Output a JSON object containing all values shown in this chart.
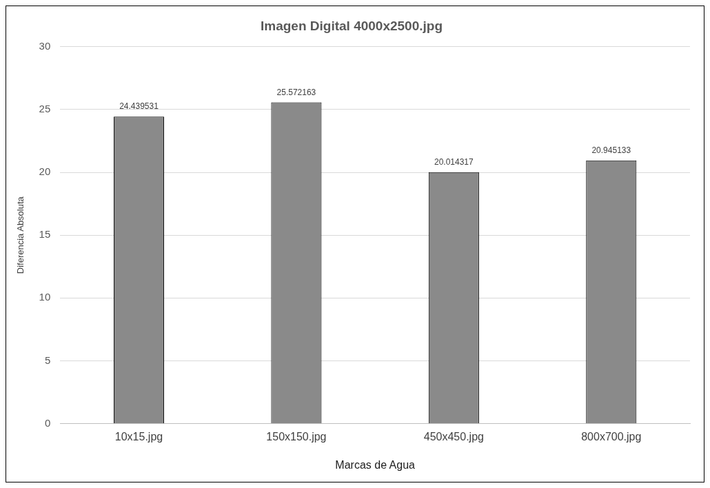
{
  "chart_data": {
    "type": "bar",
    "title": "Imagen Digital 4000x2500.jpg",
    "xlabel": "Marcas de Agua",
    "ylabel": "Diferencia Absoluta",
    "categories": [
      "10x15.jpg",
      "150x150.jpg",
      "450x450.jpg",
      "800x700.jpg"
    ],
    "values": [
      24.439531,
      25.572163,
      20.014317,
      20.945133
    ],
    "color": "#8a8a8a",
    "ylim": [
      0,
      30
    ],
    "yticks": [
      0,
      5,
      10,
      15,
      20,
      25,
      30
    ],
    "grid": "y",
    "data_labels": true,
    "legend": false
  }
}
